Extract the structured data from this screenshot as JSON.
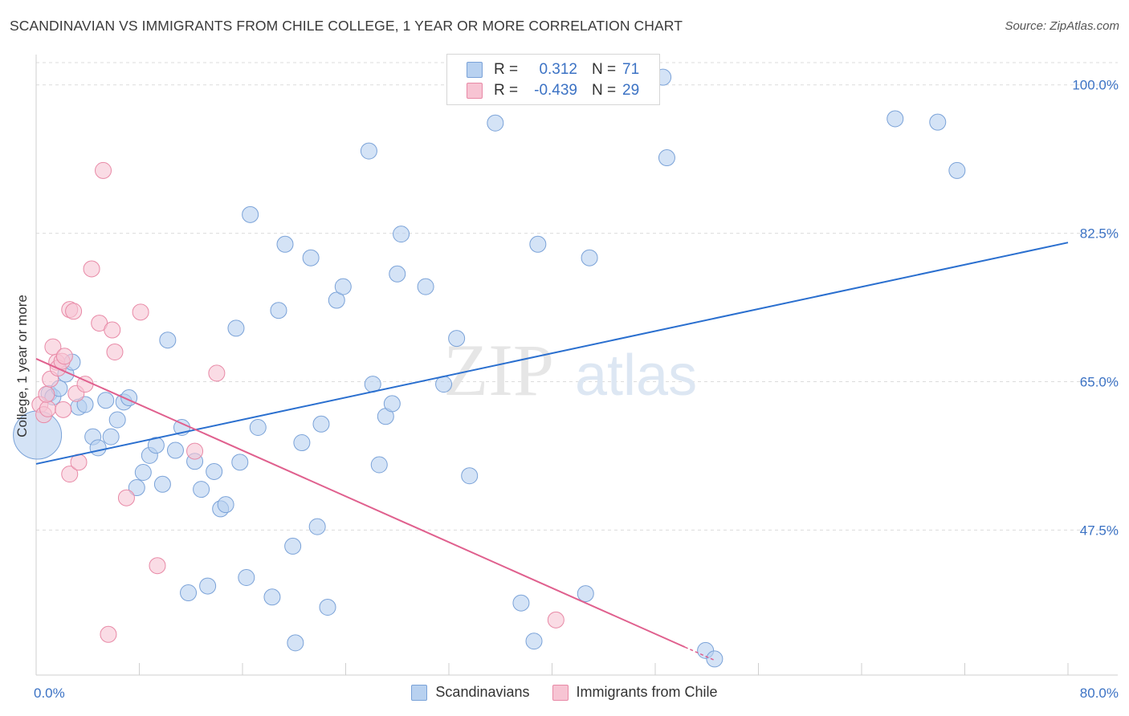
{
  "title": "SCANDINAVIAN VS IMMIGRANTS FROM CHILE COLLEGE, 1 YEAR OR MORE CORRELATION CHART",
  "source": "Source: ZipAtlas.com",
  "watermark": {
    "zip": "ZIP",
    "atlas": "atlas"
  },
  "legend": {
    "rows": [
      {
        "r_label": "R =",
        "r_value": "0.312",
        "n_label": "N =",
        "n_value": "71"
      },
      {
        "r_label": "R =",
        "r_value": "-0.439",
        "n_label": "N =",
        "n_value": "29"
      }
    ]
  },
  "bottom_legend": {
    "items": [
      "Scandinavians",
      "Immigrants from Chile"
    ]
  },
  "colors": {
    "blue_fill": "#b8d1f0",
    "blue_stroke": "#7aa2d8",
    "blue_line": "#2a6fcf",
    "pink_fill": "#f7c4d3",
    "pink_stroke": "#e889a6",
    "pink_line": "#e0608e",
    "tick_text": "#3b72c4",
    "grid": "#dcdcdc"
  },
  "chart_data": {
    "type": "scatter",
    "title": "SCANDINAVIAN VS IMMIGRANTS FROM CHILE COLLEGE, 1 YEAR OR MORE CORRELATION CHART",
    "xlabel": "",
    "ylabel": "College, 1 year or more",
    "xlim": [
      0,
      80
    ],
    "ylim": [
      30.4,
      103
    ],
    "x_tick_labels": [
      "0.0%",
      "80.0%"
    ],
    "y_ticks": [
      47.5,
      65.0,
      82.5,
      100.0
    ],
    "y_tick_labels": [
      "47.5%",
      "65.0%",
      "82.5%",
      "100.0%"
    ],
    "grid": true,
    "legend_position": "top-center",
    "series": [
      {
        "name": "Scandinavians",
        "color": "#b8d1f0",
        "trend": {
          "x": [
            0,
            80
          ],
          "y": [
            55.3,
            81.4
          ]
        },
        "points": [
          [
            0.1,
            58.7,
            30
          ],
          [
            1.0,
            63.6,
            10
          ],
          [
            1.3,
            63.2,
            10
          ],
          [
            1.8,
            64.2,
            10
          ],
          [
            2.3,
            65.9,
            10
          ],
          [
            2.8,
            67.3,
            10
          ],
          [
            3.3,
            62.0,
            10
          ],
          [
            3.8,
            62.3,
            10
          ],
          [
            4.4,
            58.5,
            10
          ],
          [
            4.8,
            57.2,
            10
          ],
          [
            5.4,
            62.8,
            10
          ],
          [
            5.8,
            58.5,
            10
          ],
          [
            6.3,
            60.5,
            10
          ],
          [
            6.8,
            62.6,
            10
          ],
          [
            7.2,
            63.1,
            10
          ],
          [
            7.8,
            52.5,
            10
          ],
          [
            8.3,
            54.3,
            10
          ],
          [
            8.8,
            56.3,
            10
          ],
          [
            9.3,
            57.5,
            10
          ],
          [
            9.8,
            52.9,
            10
          ],
          [
            10.2,
            69.9,
            10
          ],
          [
            10.8,
            56.9,
            10
          ],
          [
            11.3,
            59.6,
            10
          ],
          [
            11.8,
            40.1,
            10
          ],
          [
            12.3,
            55.6,
            10
          ],
          [
            12.8,
            52.3,
            10
          ],
          [
            13.3,
            40.9,
            10
          ],
          [
            13.8,
            54.4,
            10
          ],
          [
            14.3,
            50.0,
            10
          ],
          [
            14.7,
            50.5,
            10
          ],
          [
            15.5,
            71.3,
            10
          ],
          [
            15.8,
            55.5,
            10
          ],
          [
            16.3,
            41.9,
            10
          ],
          [
            16.6,
            84.7,
            10
          ],
          [
            17.2,
            59.6,
            10
          ],
          [
            18.3,
            39.6,
            10
          ],
          [
            18.8,
            73.4,
            10
          ],
          [
            19.3,
            81.2,
            10
          ],
          [
            19.9,
            45.6,
            10
          ],
          [
            20.1,
            34.2,
            10
          ],
          [
            20.6,
            57.8,
            10
          ],
          [
            21.3,
            79.6,
            10
          ],
          [
            21.8,
            47.9,
            10
          ],
          [
            22.1,
            60.0,
            10
          ],
          [
            22.6,
            38.4,
            10
          ],
          [
            23.3,
            74.6,
            10
          ],
          [
            23.8,
            76.2,
            10
          ],
          [
            25.8,
            92.2,
            10
          ],
          [
            26.1,
            64.7,
            10
          ],
          [
            26.6,
            55.2,
            10
          ],
          [
            27.1,
            60.9,
            10
          ],
          [
            27.6,
            62.4,
            10
          ],
          [
            28.0,
            77.7,
            10
          ],
          [
            28.3,
            82.4,
            10
          ],
          [
            30.2,
            76.2,
            10
          ],
          [
            31.6,
            64.7,
            10
          ],
          [
            32.6,
            70.1,
            10
          ],
          [
            33.6,
            53.9,
            10
          ],
          [
            35.6,
            95.5,
            10
          ],
          [
            37.6,
            38.9,
            10
          ],
          [
            38.6,
            34.4,
            10
          ],
          [
            38.9,
            81.2,
            10
          ],
          [
            42.6,
            40.0,
            10
          ],
          [
            42.9,
            79.6,
            10
          ],
          [
            48.6,
            100.9,
            10
          ],
          [
            48.9,
            91.4,
            10
          ],
          [
            51.9,
            33.3,
            10
          ],
          [
            52.6,
            32.3,
            10
          ],
          [
            66.6,
            96.0,
            10
          ],
          [
            69.9,
            95.6,
            10
          ],
          [
            71.4,
            89.9,
            10
          ]
        ]
      },
      {
        "name": "Immigrants from Chile",
        "color": "#f7c4d3",
        "trend": {
          "x": [
            0,
            50.3
          ],
          "y": [
            67.7,
            33.7
          ]
        },
        "points": [
          [
            0.3,
            62.3,
            10
          ],
          [
            0.6,
            61.1,
            10
          ],
          [
            0.9,
            61.8,
            10
          ],
          [
            0.8,
            63.5,
            10
          ],
          [
            1.1,
            65.3,
            10
          ],
          [
            1.3,
            69.1,
            10
          ],
          [
            1.6,
            67.3,
            10
          ],
          [
            1.7,
            66.6,
            10
          ],
          [
            2.0,
            67.4,
            10
          ],
          [
            2.2,
            68.0,
            10
          ],
          [
            2.1,
            61.7,
            10
          ],
          [
            2.6,
            73.5,
            10
          ],
          [
            2.9,
            73.3,
            10
          ],
          [
            2.6,
            54.1,
            10
          ],
          [
            3.1,
            63.6,
            10
          ],
          [
            3.3,
            55.5,
            10
          ],
          [
            3.8,
            64.7,
            10
          ],
          [
            4.3,
            78.3,
            10
          ],
          [
            4.9,
            71.9,
            10
          ],
          [
            5.2,
            89.9,
            10
          ],
          [
            5.6,
            35.2,
            10
          ],
          [
            5.9,
            71.1,
            10
          ],
          [
            6.1,
            68.5,
            10
          ],
          [
            7.0,
            51.3,
            10
          ],
          [
            8.1,
            73.2,
            10
          ],
          [
            9.4,
            43.3,
            10
          ],
          [
            12.3,
            56.8,
            10
          ],
          [
            14.0,
            66.0,
            10
          ],
          [
            40.3,
            36.9,
            10
          ]
        ]
      }
    ]
  }
}
